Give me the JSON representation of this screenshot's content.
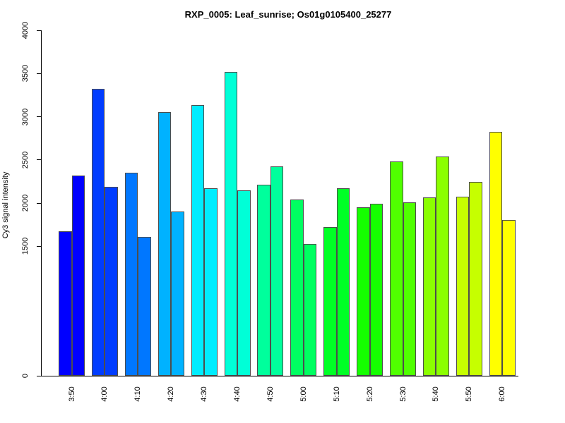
{
  "title": "RXP_0005: Leaf_sunrise; Os01g0105400_25277",
  "chart_data": {
    "type": "bar",
    "title": "RXP_0005: Leaf_sunrise; Os01g0105400_25277",
    "xlabel": "",
    "ylabel": "Cy3 signal intensity",
    "categories": [
      "3:50",
      "4:00",
      "4:10",
      "4:20",
      "4:30",
      "4:40",
      "4:50",
      "5:00",
      "5:10",
      "5:20",
      "5:30",
      "5:40",
      "5:50",
      "6:00"
    ],
    "series": [
      {
        "name": "bar-1",
        "values": [
          1670,
          3320,
          2350,
          3050,
          3135,
          3515,
          2215,
          2040,
          1720,
          1955,
          2480,
          2065,
          2075,
          2825
        ]
      },
      {
        "name": "bar-2",
        "values": [
          2320,
          2190,
          1605,
          1900,
          2170,
          2145,
          2425,
          1525,
          2170,
          1990,
          2005,
          2540,
          2245,
          1805
        ]
      }
    ],
    "group_colors": [
      "#0000FF",
      "#003CFF",
      "#0077FF",
      "#00B2FF",
      "#00EDFF",
      "#00FFD7",
      "#00FF9C",
      "#00FF61",
      "#00FF26",
      "#15FF00",
      "#50FF00",
      "#8BFF00",
      "#C6FF00",
      "#FFFF00"
    ],
    "bar_border_color": "#4d4d4d",
    "axis_color": "#000000",
    "yticks": [
      0,
      1500,
      2000,
      2500,
      3000,
      3500,
      4000
    ],
    "ylim": [
      0,
      4000
    ],
    "grid": false,
    "legend_position": "none"
  }
}
